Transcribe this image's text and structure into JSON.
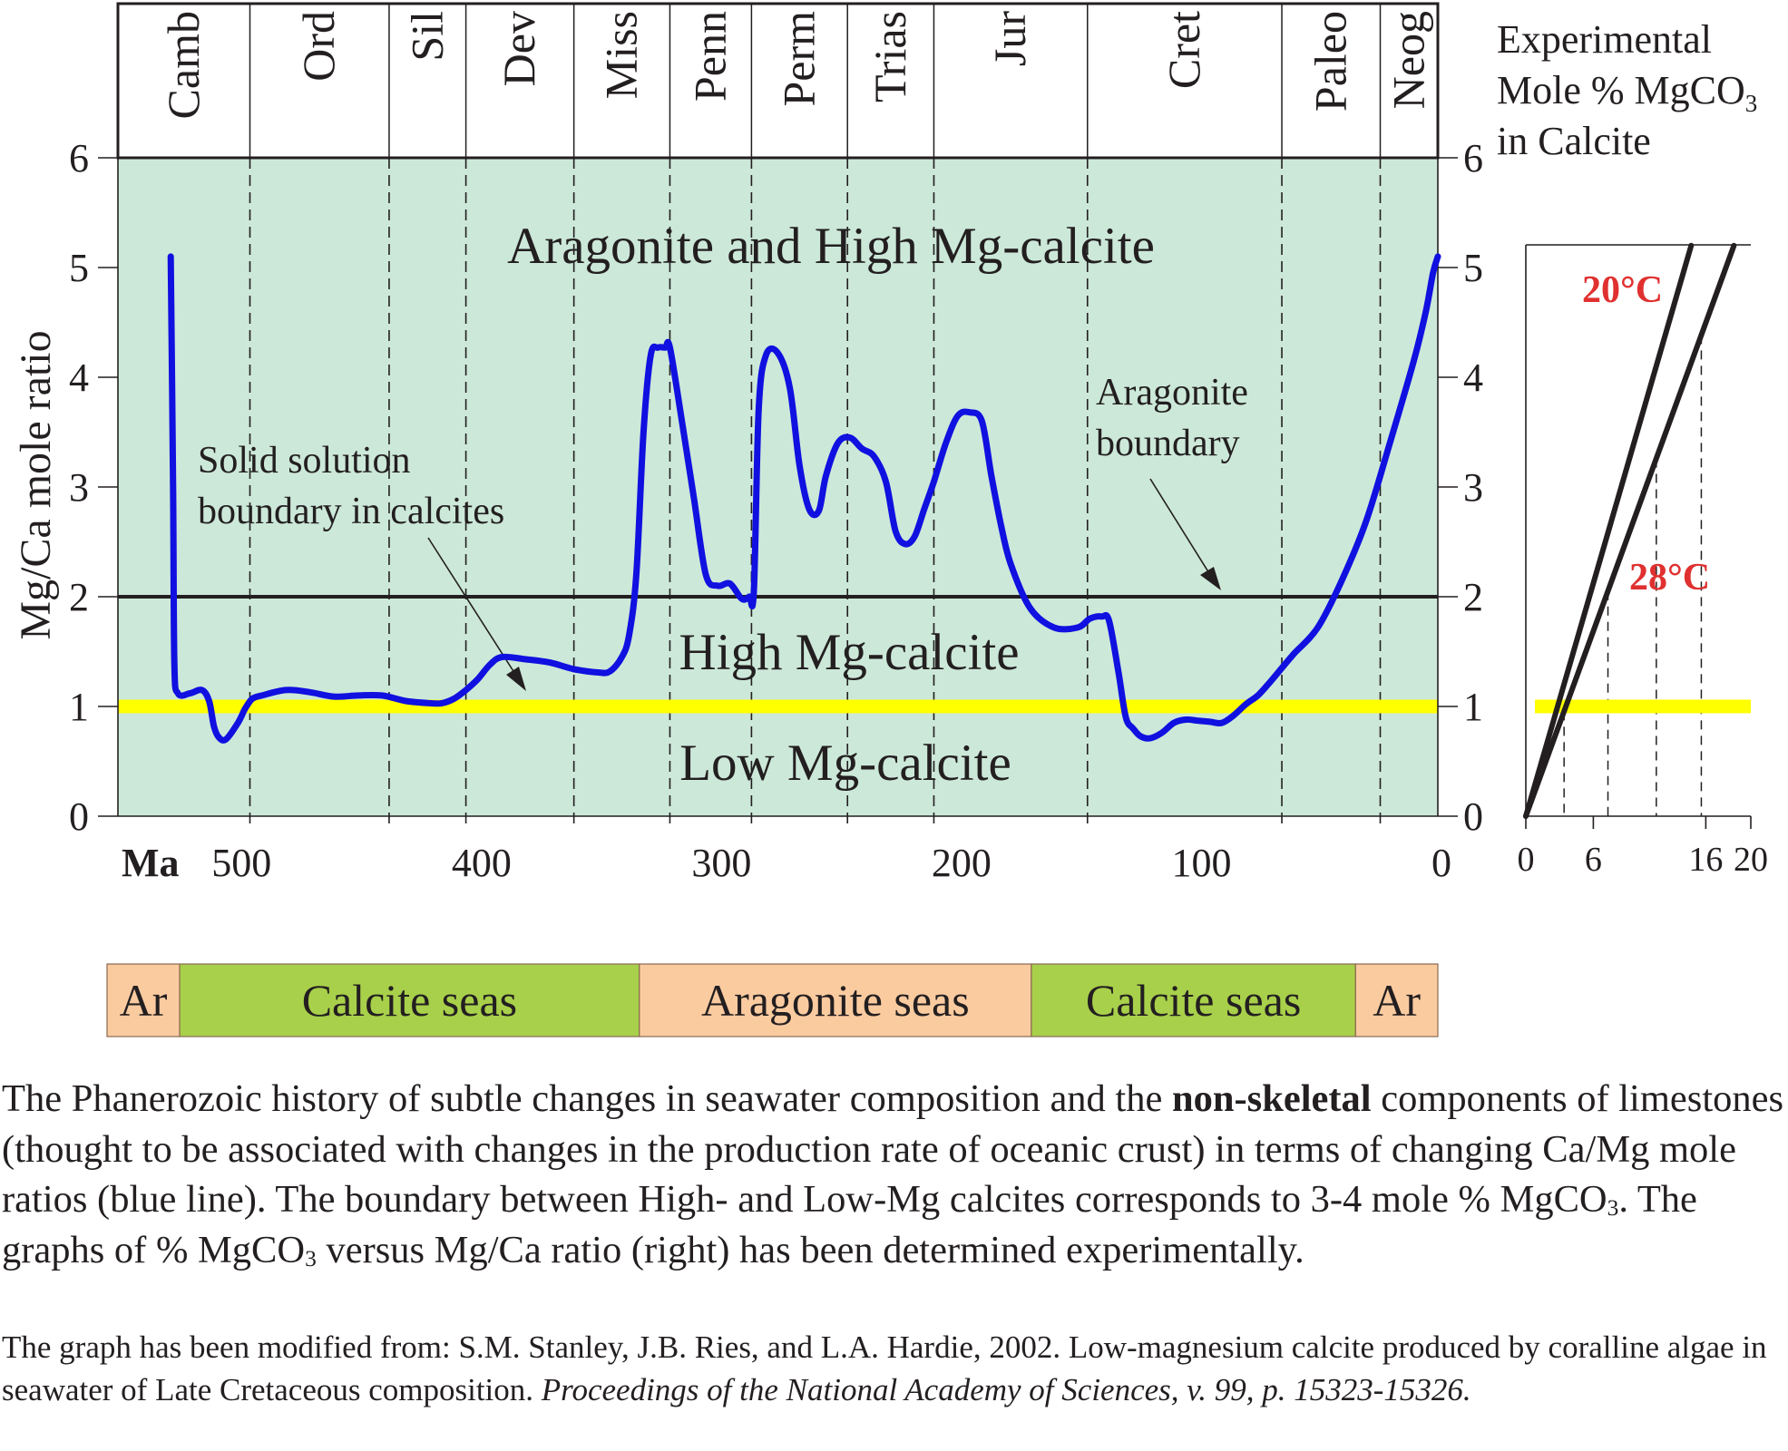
{
  "chart_data": [
    {
      "type": "line",
      "ylabel": "Mg/Ca mole ratio",
      "xlabel": "Ma",
      "xlim": [
        550,
        0
      ],
      "ylim": [
        0,
        6
      ],
      "x_ticks": [
        500,
        400,
        300,
        200,
        100,
        0
      ],
      "y_ticks": [
        0,
        1,
        2,
        3,
        4,
        5,
        6
      ],
      "periods": [
        {
          "name": "Camb",
          "start": 550,
          "end": 495
        },
        {
          "name": "Ord",
          "start": 495,
          "end": 437
        },
        {
          "name": "Sil",
          "start": 437,
          "end": 405
        },
        {
          "name": "Dev",
          "start": 405,
          "end": 360
        },
        {
          "name": "Miss",
          "start": 360,
          "end": 320
        },
        {
          "name": "Penn",
          "start": 320,
          "end": 286
        },
        {
          "name": "Perm",
          "start": 286,
          "end": 246
        },
        {
          "name": "Trias",
          "start": 246,
          "end": 210
        },
        {
          "name": "Jur",
          "start": 210,
          "end": 146
        },
        {
          "name": "Cret",
          "start": 146,
          "end": 65
        },
        {
          "name": "Paleo",
          "start": 65,
          "end": 24
        },
        {
          "name": "Neog",
          "start": 24,
          "end": 0
        }
      ],
      "series": [
        {
          "color": "#1010e0",
          "x": [
            528,
            527,
            526.5,
            525,
            520,
            515,
            512,
            510,
            508,
            505,
            500,
            497,
            494,
            490,
            480,
            470,
            460,
            450,
            440,
            430,
            420,
            415,
            410,
            405,
            400,
            395,
            390,
            380,
            370,
            360,
            350,
            345,
            340,
            337,
            334,
            331,
            328,
            325,
            322,
            320,
            315,
            310,
            305,
            300,
            295,
            290,
            287,
            285,
            283,
            280,
            275,
            270,
            266,
            262,
            258,
            255,
            250,
            245,
            240,
            235,
            230,
            226,
            222,
            218,
            214,
            210,
            205,
            200,
            195,
            190,
            186,
            182,
            178,
            170,
            160,
            150,
            145,
            140,
            137,
            133,
            130,
            127,
            124,
            120,
            115,
            110,
            105,
            100,
            95,
            90,
            85,
            80,
            75,
            70,
            65,
            60,
            50,
            40,
            30,
            20,
            10,
            5,
            2,
            0
          ],
          "y": [
            5.1,
            3.0,
            1.4,
            1.12,
            1.12,
            1.15,
            1.05,
            0.82,
            0.72,
            0.7,
            0.85,
            0.98,
            1.07,
            1.1,
            1.15,
            1.13,
            1.09,
            1.1,
            1.1,
            1.05,
            1.03,
            1.03,
            1.07,
            1.15,
            1.25,
            1.38,
            1.45,
            1.43,
            1.4,
            1.34,
            1.31,
            1.32,
            1.45,
            1.65,
            2.2,
            3.5,
            4.2,
            4.27,
            4.27,
            4.27,
            3.6,
            2.9,
            2.2,
            2.1,
            2.12,
            1.98,
            2.0,
            2.05,
            3.7,
            4.2,
            4.22,
            3.9,
            3.2,
            2.8,
            2.78,
            3.1,
            3.4,
            3.45,
            3.35,
            3.28,
            3.05,
            2.6,
            2.48,
            2.55,
            2.8,
            3.05,
            3.4,
            3.65,
            3.68,
            3.6,
            3.1,
            2.65,
            2.3,
            1.9,
            1.72,
            1.72,
            1.8,
            1.82,
            1.78,
            1.3,
            0.9,
            0.8,
            0.73,
            0.71,
            0.76,
            0.85,
            0.88,
            0.87,
            0.86,
            0.85,
            0.92,
            1.02,
            1.1,
            1.22,
            1.35,
            1.48,
            1.72,
            2.15,
            2.68,
            3.4,
            4.15,
            4.6,
            4.95,
            5.1
          ]
        }
      ],
      "boundaries": [
        {
          "y": 2.0,
          "color": "#231f20"
        },
        {
          "y": 1.0,
          "color": "#ffff00"
        }
      ],
      "region_labels": [
        "Aragonite and High Mg-calcite",
        "High Mg-calcite",
        "Low Mg-calcite"
      ],
      "annotations": [
        {
          "text": [
            "Solid solution",
            "boundary in calcites"
          ]
        },
        {
          "text": [
            "Aragonite",
            "boundary"
          ]
        }
      ],
      "background": "#cce8d9"
    },
    {
      "type": "line",
      "title_lines": [
        "Experimental",
        "Mole % MgCO",
        "in Calcite"
      ],
      "title_sub": "3",
      "xlim": [
        0,
        20
      ],
      "ylim": [
        0,
        6
      ],
      "x_ticks": [
        0,
        6,
        16,
        20
      ],
      "y_ticks": [
        0,
        1,
        2,
        3,
        4,
        5,
        6
      ],
      "series": [
        {
          "name": "20°C",
          "color": "#231f20",
          "x": [
            0,
            14.7
          ],
          "y": [
            0,
            5.2
          ]
        },
        {
          "name": "28°C",
          "color": "#231f20",
          "x": [
            0,
            18.5
          ],
          "y": [
            0,
            5.2
          ]
        }
      ],
      "label_color": "#e03030",
      "boundary_y": 1.0,
      "dashed_x": [
        3.4,
        7.3,
        11.6,
        15.6
      ]
    }
  ],
  "seas": [
    {
      "label": "Ar",
      "start": 550,
      "end": 520,
      "color": "#fbcba0"
    },
    {
      "label": "Calcite seas",
      "start": 520,
      "end": 330,
      "color": "#a8d04a"
    },
    {
      "label": "Aragonite seas",
      "start": 330,
      "end": 168,
      "color": "#fbcba0"
    },
    {
      "label": "Calcite seas",
      "start": 168,
      "end": 34,
      "color": "#a8d04a"
    },
    {
      "label": "Ar",
      "start": 34,
      "end": 0,
      "color": "#fbcba0"
    }
  ],
  "caption": {
    "p1": "The Phanerozoic history of subtle changes in seawater composition and the ",
    "bold": "non-skeletal",
    "p2": " components of limestones (thought to be associated with changes in the production rate of oceanic crust) in terms of changing Ca/Mg mole ratios (blue line). The boundary between High- and Low-Mg calcites corresponds to 3-4 mole % MgCO",
    "sub1": "3",
    "p3": ". The graphs of % MgCO",
    "sub2": "3",
    "p4": " versus Mg/Ca ratio (right) has been determined experimentally.",
    "source_text": "The graph has been modified from: S.M. Stanley, J.B. Ries, and L.A. Hardie, 2002. Low-magnesium calcite produced by coralline algae in seawater of Late Cretaceous composition. ",
    "source_italic": "Proceedings of the National Academy of Sciences, v. 99, p. 15323-15326."
  }
}
